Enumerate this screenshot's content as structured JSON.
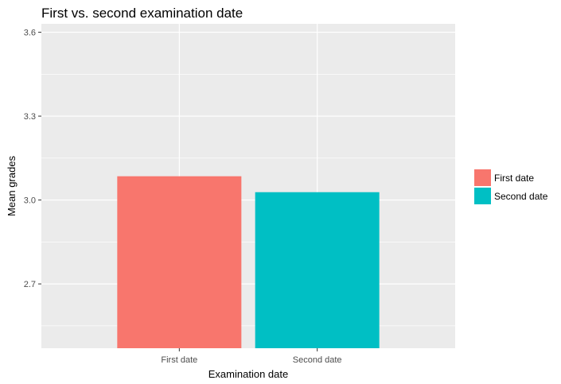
{
  "chart_data": {
    "type": "bar",
    "title": "First vs. second examination date",
    "xlabel": "Examination date",
    "ylabel": "Mean grades",
    "categories": [
      "First date",
      "Second date"
    ],
    "values": [
      3.085,
      3.028
    ],
    "colors": [
      "#F8766D",
      "#00BFC4"
    ],
    "ylim": [
      2.47,
      3.63
    ],
    "yticks": [
      2.7,
      3.0,
      3.3,
      3.6
    ],
    "ytick_labels": [
      "2.7",
      "3.0",
      "3.3",
      "3.6"
    ],
    "panel_background": "#EBEBEB",
    "gridline_color": "#FFFFFF",
    "grid": true,
    "legend": {
      "position": "right",
      "entries": [
        "First date",
        "Second date"
      ]
    }
  }
}
